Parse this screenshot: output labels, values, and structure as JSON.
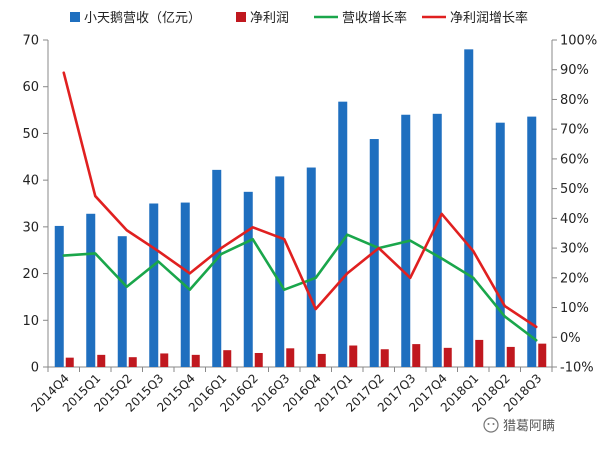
{
  "chart_data": {
    "type": "bar",
    "categories": [
      "2014Q4",
      "2015Q1",
      "2015Q2",
      "2015Q3",
      "2015Q4",
      "2016Q1",
      "2016Q2",
      "2016Q3",
      "2016Q4",
      "2017Q1",
      "2017Q2",
      "2017Q3",
      "2017Q4",
      "2018Q1",
      "2018Q2",
      "2018Q3"
    ],
    "series": [
      {
        "name": "小天鹅营收（亿元）",
        "type": "bar",
        "axis": "left",
        "color": "#1f6fbf",
        "values": [
          30.2,
          32.8,
          28.0,
          35.0,
          35.2,
          42.2,
          37.5,
          40.8,
          42.7,
          56.8,
          48.8,
          54.0,
          54.2,
          68.0,
          52.3,
          53.6
        ]
      },
      {
        "name": "净利润",
        "type": "bar",
        "axis": "left",
        "color": "#c0181f",
        "values": [
          2.0,
          2.6,
          2.1,
          2.9,
          2.6,
          3.6,
          3.0,
          4.0,
          2.8,
          4.6,
          3.8,
          4.9,
          4.1,
          5.8,
          4.3,
          5.0
        ]
      },
      {
        "name": "营收增长率",
        "type": "line",
        "axis": "right",
        "color": "#1aa64b",
        "values": [
          27.5,
          28.2,
          17.0,
          25.5,
          16.0,
          28.0,
          33.0,
          16.0,
          20.0,
          34.5,
          30.0,
          32.5,
          26.5,
          20.0,
          7.0,
          -1.0
        ]
      },
      {
        "name": "净利润增长率",
        "type": "line",
        "axis": "right",
        "color": "#e02020",
        "values": [
          89.0,
          47.5,
          36.0,
          29.0,
          21.5,
          30.0,
          37.0,
          33.0,
          9.5,
          21.5,
          30.0,
          20.0,
          41.5,
          29.0,
          10.5,
          3.5
        ]
      }
    ],
    "left_axis": {
      "ylim": [
        0,
        70
      ],
      "ticks": [
        "0",
        "10",
        "20",
        "30",
        "40",
        "50",
        "60",
        "70"
      ]
    },
    "right_axis": {
      "ylim": [
        -10,
        100
      ],
      "ticks": [
        "-10%",
        "0%",
        "10%",
        "20%",
        "30%",
        "40%",
        "50%",
        "60%",
        "70%",
        "80%",
        "90%",
        "100%"
      ]
    },
    "legend_position": "top",
    "grid": false,
    "watermark": "猎葛阿瞒"
  }
}
